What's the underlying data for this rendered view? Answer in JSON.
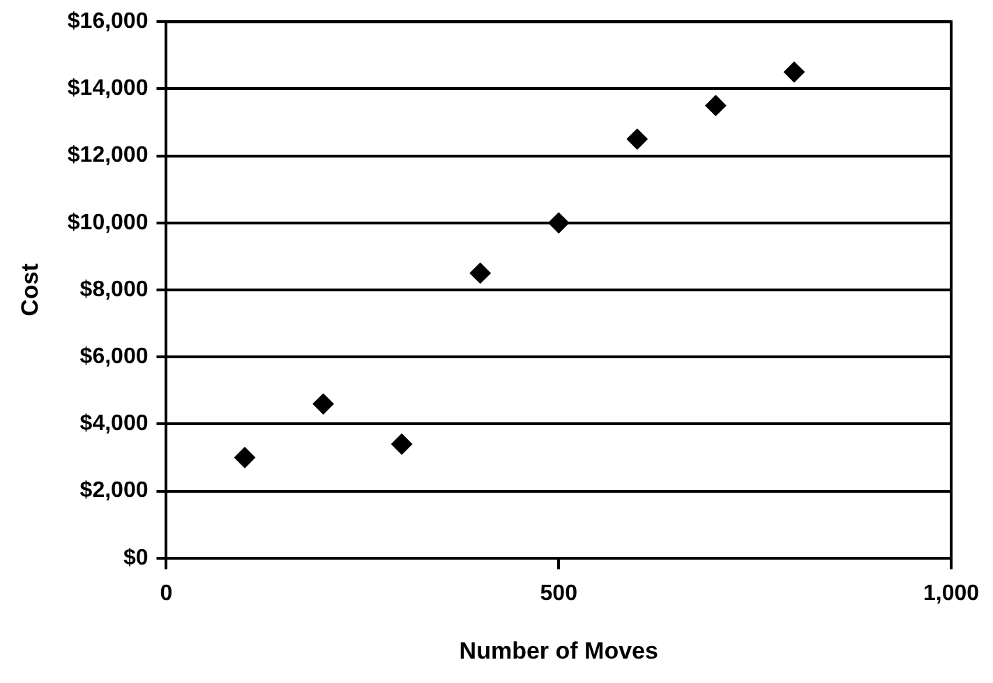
{
  "chart_data": {
    "type": "scatter",
    "xlabel": "Number of Moves",
    "ylabel": "Cost",
    "x": [
      100,
      200,
      300,
      400,
      500,
      600,
      700,
      800
    ],
    "values": [
      3000,
      4600,
      3400,
      8500,
      10000,
      12500,
      13500,
      14500
    ],
    "color": "#000000",
    "marker": "diamond",
    "xlim": [
      0,
      1000
    ],
    "xticks": [
      {
        "value": 0,
        "label": "0"
      },
      {
        "value": 500,
        "label": "500"
      },
      {
        "value": 1000,
        "label": "1,000"
      }
    ],
    "ylim": [
      0,
      16000
    ],
    "yticks": [
      {
        "value": 0,
        "label": "$0"
      },
      {
        "value": 2000,
        "label": "$2,000"
      },
      {
        "value": 4000,
        "label": "$4,000"
      },
      {
        "value": 6000,
        "label": "$6,000"
      },
      {
        "value": 8000,
        "label": "$8,000"
      },
      {
        "value": 10000,
        "label": "$10,000"
      },
      {
        "value": 12000,
        "label": "$12,000"
      },
      {
        "value": 14000,
        "label": "$14,000"
      },
      {
        "value": 16000,
        "label": "$16,000"
      }
    ],
    "grid": "y",
    "legend": false
  }
}
